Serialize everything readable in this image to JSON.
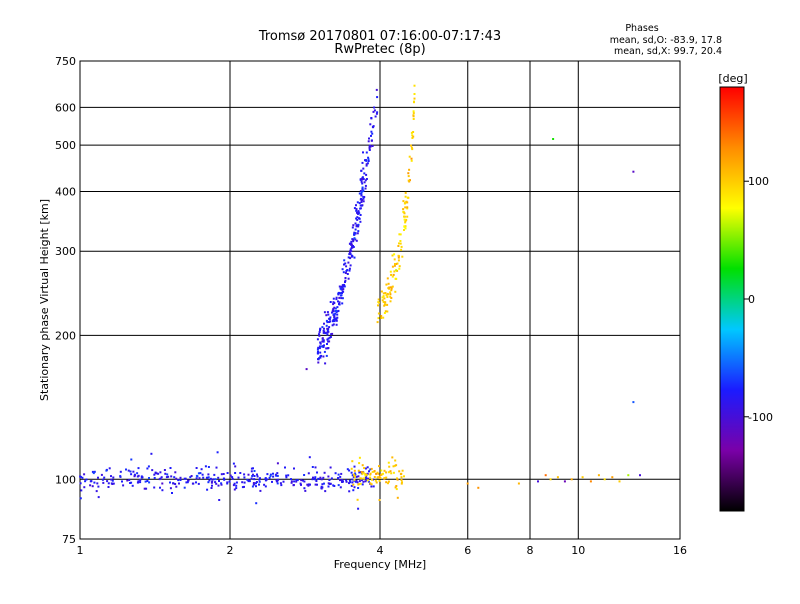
{
  "chart_data": {
    "type": "scatter",
    "title": "Tromsø 20170801 07:16:00-07:17:43",
    "subtitle": "RwPretec (8p)",
    "xlabel": "Frequency [MHz]",
    "ylabel": "Stationary phase Virtual Height [km]",
    "xscale": "log",
    "yscale": "log",
    "xlim": [
      1,
      16
    ],
    "ylim": [
      75,
      750
    ],
    "xticks": [
      1,
      2,
      4,
      6,
      8,
      10,
      16
    ],
    "yticks": [
      75,
      100,
      200,
      300,
      400,
      500,
      600,
      750
    ],
    "grid": true,
    "stats": {
      "heading": "Phases",
      "o_line": "mean, sd,O: -83.9, 17.8",
      "x_line": "mean, sd,X:  99.7, 20.4"
    },
    "colorbar": {
      "label": "[deg]",
      "range": [
        -180,
        180
      ],
      "ticks": [
        100,
        0,
        -100
      ],
      "colormap": "rainbow",
      "colors": [
        "#000000",
        "#7a00a8",
        "#1b1bff",
        "#00c8ff",
        "#00e000",
        "#ffff00",
        "#ff8c00",
        "#ff0000"
      ]
    },
    "series": [
      {
        "mode": "O",
        "phase_mean": -83.9,
        "phase_sd": 17.8,
        "description": "low E/F trace and F2 trace",
        "clusters": [
          {
            "x_range": [
              1.0,
              3.9
            ],
            "y_center": 100,
            "y_spread": 0.05,
            "count": 380
          },
          {
            "x_range": [
              3.0,
              3.72
            ],
            "y_range": [
              190,
              420
            ],
            "count": 260,
            "shape": "rising"
          },
          {
            "x_range": [
              3.65,
              3.95
            ],
            "y_range": [
              420,
              640
            ],
            "count": 60,
            "shape": "rising"
          }
        ]
      },
      {
        "mode": "X",
        "phase_mean": 99.7,
        "phase_sd": 20.4,
        "description": "X-mode trace",
        "clusters": [
          {
            "x_range": [
              3.5,
              4.5
            ],
            "y_center": 102,
            "y_spread": 0.06,
            "count": 90
          },
          {
            "x_range": [
              3.95,
              4.55
            ],
            "y_range": [
              220,
              360
            ],
            "count": 90,
            "shape": "rising"
          },
          {
            "x_range": [
              4.45,
              4.7
            ],
            "y_range": [
              360,
              640
            ],
            "count": 45,
            "shape": "rising"
          }
        ]
      }
    ],
    "sparse_points": [
      {
        "x": 8.9,
        "y": 515,
        "phase": 30
      },
      {
        "x": 12.9,
        "y": 440,
        "phase": -110
      },
      {
        "x": 12.9,
        "y": 145,
        "phase": -60
      },
      {
        "x": 2.85,
        "y": 170,
        "phase": -110
      },
      {
        "x": 6.0,
        "y": 98,
        "phase": 120
      },
      {
        "x": 6.3,
        "y": 96,
        "phase": 125
      },
      {
        "x": 7.6,
        "y": 98,
        "phase": 110
      },
      {
        "x": 8.3,
        "y": 99,
        "phase": -100
      },
      {
        "x": 8.6,
        "y": 102,
        "phase": 140
      },
      {
        "x": 8.8,
        "y": 100,
        "phase": 95
      },
      {
        "x": 9.1,
        "y": 101,
        "phase": 105
      },
      {
        "x": 9.4,
        "y": 99,
        "phase": -120
      },
      {
        "x": 9.7,
        "y": 100,
        "phase": 115
      },
      {
        "x": 10.2,
        "y": 101,
        "phase": 100
      },
      {
        "x": 10.6,
        "y": 99,
        "phase": 130
      },
      {
        "x": 11.0,
        "y": 102,
        "phase": 110
      },
      {
        "x": 11.3,
        "y": 100,
        "phase": 90
      },
      {
        "x": 11.7,
        "y": 101,
        "phase": 120
      },
      {
        "x": 12.1,
        "y": 99,
        "phase": 100
      },
      {
        "x": 12.6,
        "y": 102,
        "phase": 60
      },
      {
        "x": 13.3,
        "y": 102,
        "phase": -100
      }
    ]
  }
}
